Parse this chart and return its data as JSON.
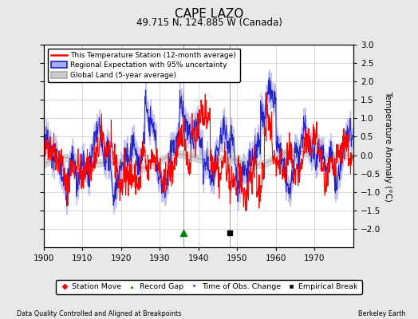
{
  "title": "CAPE LAZO",
  "subtitle": "49.715 N, 124.885 W (Canada)",
  "ylabel": "Temperature Anomaly (°C)",
  "xlabel_bottom_left": "Data Quality Controlled and Aligned at Breakpoints",
  "xlabel_bottom_right": "Berkeley Earth",
  "xlim": [
    1900,
    1980
  ],
  "ylim": [
    -2.5,
    3.0
  ],
  "yticks": [
    -2,
    -1.5,
    -1,
    -0.5,
    0,
    0.5,
    1,
    1.5,
    2,
    2.5,
    3
  ],
  "xticks": [
    1900,
    1910,
    1920,
    1930,
    1940,
    1950,
    1960,
    1970
  ],
  "bg_color": "#e8e8e8",
  "plot_bg_color": "#ffffff",
  "grid_color": "#cccccc",
  "red_color": "#ff0000",
  "blue_color": "#2222cc",
  "blue_shade_color": "#aaaaee",
  "gray_color": "#aaaaaa",
  "gray_shade_color": "#cccccc",
  "record_gap_x": 1936,
  "record_gap_y": -2.1,
  "empirical_break_x": 1948,
  "empirical_break_y": -2.1,
  "vertical_line_x1": 1936,
  "vertical_line_x2": 1948,
  "legend_labels": [
    "This Temperature Station (12-month average)",
    "Regional Expectation with 95% uncertainty",
    "Global Land (5-year average)"
  ],
  "bottom_legend": [
    "Station Move",
    "Record Gap",
    "Time of Obs. Change",
    "Empirical Break"
  ]
}
